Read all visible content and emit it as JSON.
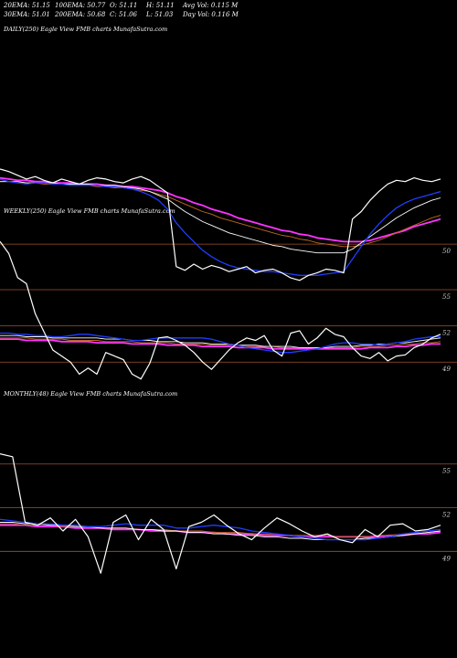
{
  "header": {
    "row1": [
      {
        "label": "20EMA: 51.15"
      },
      {
        "label": "100EMA: 50.77"
      },
      {
        "label": "O: 51.11"
      },
      {
        "label": "H: 51.11"
      },
      {
        "label": "Avg Vol: 0.115 M"
      }
    ],
    "row2": [
      {
        "label": "30EMA: 51.01"
      },
      {
        "label": "200EMA: 50.68"
      },
      {
        "label": "C: 51.06"
      },
      {
        "label": "L: 51.03"
      },
      {
        "label": "Day Vol: 0.116  M"
      }
    ]
  },
  "colors": {
    "price": "#ffffff",
    "ema_fast": "#1f3dff",
    "ema_mid": "#ff33ff",
    "ema_slow": "#ffffff",
    "ema_brown": "#c06a20",
    "level_line": "#a0522d",
    "background": "#000000"
  },
  "chart_data": [
    {
      "type": "line",
      "title": "DAILY(250) Eagle  View  FMB charts MunafaSutra.com",
      "levels": [
        {
          "label": "50",
          "value": 50
        }
      ],
      "series": [
        {
          "values": [
            56,
            55.8,
            55.5,
            55.2,
            55.4,
            55.1,
            54.9,
            55.2,
            55.0,
            54.8,
            55.1,
            55.3,
            55.2,
            55.0,
            54.9,
            55.2,
            55.4,
            55.1,
            54.6,
            54.1,
            48.2,
            47.9,
            48.4,
            48.0,
            48.3,
            48.1,
            47.8,
            48.0,
            48.2,
            47.7,
            47.9,
            48.0,
            47.7,
            47.3,
            47.1,
            47.5,
            47.7,
            48.0,
            47.9,
            47.7,
            52.0,
            52.6,
            53.5,
            54.2,
            54.8,
            55.1,
            55.0,
            55.3,
            55.1,
            55.0,
            55.2
          ]
        },
        {
          "values": [
            55.2,
            55.0,
            54.9,
            54.8,
            54.9,
            54.9,
            54.8,
            54.8,
            54.7,
            54.7,
            54.7,
            54.7,
            54.6,
            54.6,
            54.5,
            54.4,
            54.2,
            53.9,
            53.5,
            52.8,
            51.7,
            50.9,
            50.2,
            49.5,
            49.0,
            48.6,
            48.3,
            48.1,
            48.0,
            47.9,
            47.8,
            47.8,
            47.7,
            47.6,
            47.5,
            47.5,
            47.5,
            47.6,
            47.7,
            47.8,
            48.8,
            49.8,
            50.8,
            51.6,
            52.3,
            52.9,
            53.3,
            53.6,
            53.8,
            54.0,
            54.2
          ]
        },
        {
          "values": [
            55.0,
            55.0,
            55.0,
            54.9,
            54.9,
            54.9,
            54.9,
            54.8,
            54.8,
            54.8,
            54.8,
            54.7,
            54.7,
            54.7,
            54.6,
            54.5,
            54.4,
            54.2,
            53.9,
            53.6,
            53.1,
            52.6,
            52.2,
            51.8,
            51.5,
            51.2,
            50.9,
            50.7,
            50.5,
            50.3,
            50.1,
            49.9,
            49.8,
            49.6,
            49.5,
            49.4,
            49.3,
            49.3,
            49.3,
            49.3,
            49.6,
            50.1,
            50.6,
            51.1,
            51.6,
            52.1,
            52.5,
            52.9,
            53.2,
            53.5,
            53.7
          ]
        },
        {
          "values": [
            55.0,
            55.0,
            54.9,
            54.9,
            54.9,
            54.8,
            54.8,
            54.8,
            54.7,
            54.7,
            54.7,
            54.6,
            54.6,
            54.5,
            54.5,
            54.4,
            54.3,
            54.2,
            54.0,
            53.8,
            53.5,
            53.2,
            52.9,
            52.6,
            52.4,
            52.1,
            51.9,
            51.7,
            51.5,
            51.3,
            51.1,
            50.9,
            50.7,
            50.6,
            50.4,
            50.3,
            50.1,
            50.0,
            49.9,
            49.8,
            49.8,
            49.9,
            50.1,
            50.3,
            50.6,
            50.9,
            51.2,
            51.5,
            51.8,
            52.1,
            52.3
          ]
        },
        {
          "values": [
            55.3,
            55.2,
            55.1,
            55.1,
            55.0,
            55.0,
            54.9,
            54.9,
            54.9,
            54.8,
            54.8,
            54.8,
            54.7,
            54.7,
            54.6,
            54.6,
            54.5,
            54.4,
            54.3,
            54.1,
            53.8,
            53.6,
            53.3,
            53.1,
            52.8,
            52.6,
            52.4,
            52.1,
            51.9,
            51.7,
            51.5,
            51.3,
            51.1,
            51.0,
            50.8,
            50.7,
            50.5,
            50.4,
            50.3,
            50.2,
            50.2,
            50.2,
            50.3,
            50.5,
            50.7,
            50.9,
            51.1,
            51.4,
            51.6,
            51.8,
            52.0
          ]
        }
      ]
    },
    {
      "type": "line",
      "title": "WEEKLY(250) Eagle  View  FMB charts MunafaSutra.com",
      "levels": [
        {
          "label": "55",
          "value": 55
        },
        {
          "label": "52",
          "value": 52
        },
        {
          "label": "49",
          "value": 49
        }
      ],
      "series": [
        {
          "values": [
            59.0,
            58.0,
            56.0,
            55.5,
            53.0,
            51.5,
            50.0,
            49.5,
            49.0,
            48.0,
            48.5,
            48.0,
            49.8,
            49.5,
            49.2,
            48.0,
            47.6,
            48.9,
            51.0,
            51.1,
            50.8,
            50.4,
            49.8,
            49.0,
            48.4,
            49.2,
            50.0,
            50.6,
            51.0,
            50.8,
            51.2,
            50.0,
            49.5,
            51.4,
            51.6,
            50.5,
            51.0,
            51.8,
            51.3,
            51.1,
            50.2,
            49.5,
            49.3,
            49.8,
            49.1,
            49.5,
            49.6,
            50.2,
            50.5,
            51.0,
            51.3
          ]
        },
        {
          "values": [
            51.4,
            51.4,
            51.3,
            51.3,
            51.2,
            51.2,
            51.1,
            51.1,
            51.2,
            51.3,
            51.3,
            51.2,
            51.1,
            51.0,
            50.9,
            50.8,
            50.8,
            50.9,
            51.0,
            51.0,
            51.0,
            51.0,
            51.0,
            51.0,
            50.9,
            50.7,
            50.5,
            50.4,
            50.2,
            50.1,
            50.0,
            49.9,
            49.8,
            49.8,
            49.9,
            50.0,
            50.1,
            50.3,
            50.5,
            50.6,
            50.6,
            50.5,
            50.5,
            50.4,
            50.5,
            50.6,
            50.7,
            50.9,
            51.0,
            51.1,
            51.1
          ]
        },
        {
          "values": [
            51.2,
            51.2,
            51.2,
            51.1,
            51.1,
            51.1,
            51.0,
            51.0,
            51.0,
            51.0,
            51.0,
            51.0,
            50.9,
            50.9,
            50.9,
            50.8,
            50.8,
            50.8,
            50.7,
            50.7,
            50.7,
            50.6,
            50.6,
            50.6,
            50.5,
            50.5,
            50.5,
            50.4,
            50.4,
            50.4,
            50.3,
            50.3,
            50.3,
            50.3,
            50.2,
            50.2,
            50.2,
            50.2,
            50.3,
            50.3,
            50.3,
            50.4,
            50.4,
            50.5,
            50.5,
            50.6,
            50.6,
            50.7,
            50.8,
            50.9,
            51.0
          ]
        },
        {
          "values": [
            51.0,
            51.0,
            51.0,
            51.0,
            50.9,
            50.9,
            50.9,
            50.9,
            50.8,
            50.8,
            50.8,
            50.8,
            50.7,
            50.7,
            50.7,
            50.7,
            50.6,
            50.6,
            50.6,
            50.6,
            50.5,
            50.5,
            50.5,
            50.5,
            50.4,
            50.4,
            50.4,
            50.4,
            50.3,
            50.3,
            50.3,
            50.3,
            50.2,
            50.2,
            50.2,
            50.2,
            50.2,
            50.2,
            50.2,
            50.2,
            50.2,
            50.3,
            50.3,
            50.3,
            50.4,
            50.4,
            50.5,
            50.5,
            50.6,
            50.6,
            50.7
          ]
        },
        {
          "values": [
            50.9,
            50.9,
            50.9,
            50.8,
            50.8,
            50.8,
            50.8,
            50.7,
            50.7,
            50.7,
            50.7,
            50.6,
            50.6,
            50.6,
            50.6,
            50.5,
            50.5,
            50.5,
            50.5,
            50.4,
            50.4,
            50.4,
            50.4,
            50.3,
            50.3,
            50.3,
            50.3,
            50.2,
            50.2,
            50.2,
            50.2,
            50.1,
            50.1,
            50.1,
            50.1,
            50.1,
            50.1,
            50.1,
            50.1,
            50.1,
            50.1,
            50.1,
            50.2,
            50.2,
            50.2,
            50.3,
            50.3,
            50.4,
            50.4,
            50.5,
            50.5
          ]
        }
      ]
    },
    {
      "type": "line",
      "title": "MONTHLY(48) Eagle  View  FMB charts MunafaSutra.com",
      "levels": [
        {
          "label": "55",
          "value": 55
        },
        {
          "label": "52",
          "value": 52
        },
        {
          "label": "49",
          "value": 49
        }
      ],
      "series": [
        {
          "values": [
            55.7,
            55.5,
            51.0,
            50.8,
            51.3,
            50.4,
            51.2,
            50.0,
            47.5,
            51.0,
            51.5,
            49.8,
            51.2,
            50.5,
            47.8,
            50.7,
            51.0,
            51.5,
            50.8,
            50.2,
            49.8,
            50.6,
            51.3,
            50.9,
            50.4,
            50.0,
            50.2,
            49.8,
            49.6,
            50.5,
            50.0,
            50.8,
            50.9,
            50.4,
            50.5,
            50.8
          ]
        },
        {
          "values": [
            51.2,
            51.1,
            51.0,
            50.9,
            50.9,
            50.8,
            50.8,
            50.7,
            50.7,
            50.8,
            50.9,
            50.8,
            50.8,
            50.8,
            50.6,
            50.6,
            50.7,
            50.8,
            50.7,
            50.6,
            50.4,
            50.3,
            50.2,
            50.1,
            50.0,
            49.9,
            49.8,
            49.8,
            49.8,
            49.8,
            49.9,
            50.0,
            50.2,
            50.3,
            50.4,
            50.5
          ]
        },
        {
          "values": [
            51.0,
            51.0,
            50.9,
            50.9,
            50.8,
            50.8,
            50.7,
            50.7,
            50.6,
            50.6,
            50.6,
            50.5,
            50.5,
            50.4,
            50.4,
            50.3,
            50.3,
            50.2,
            50.2,
            50.1,
            50.1,
            50.0,
            50.0,
            49.9,
            49.9,
            49.8,
            49.8,
            49.8,
            49.8,
            49.9,
            49.9,
            50.0,
            50.1,
            50.2,
            50.3,
            50.4
          ]
        },
        {
          "values": [
            50.9,
            50.9,
            50.8,
            50.8,
            50.8,
            50.7,
            50.7,
            50.7,
            50.6,
            50.6,
            50.6,
            50.5,
            50.5,
            50.5,
            50.4,
            50.4,
            50.4,
            50.3,
            50.3,
            50.3,
            50.2,
            50.2,
            50.2,
            50.1,
            50.1,
            50.1,
            50.1,
            50.0,
            50.0,
            50.0,
            50.1,
            50.1,
            50.2,
            50.2,
            50.3,
            50.4
          ]
        },
        {
          "values": [
            50.8,
            50.8,
            50.8,
            50.7,
            50.7,
            50.7,
            50.6,
            50.6,
            50.6,
            50.5,
            50.5,
            50.5,
            50.4,
            50.4,
            50.4,
            50.3,
            50.3,
            50.3,
            50.2,
            50.2,
            50.2,
            50.1,
            50.1,
            50.1,
            50.0,
            50.0,
            50.0,
            50.0,
            50.0,
            50.0,
            50.0,
            50.1,
            50.1,
            50.2,
            50.2,
            50.3
          ]
        }
      ]
    }
  ]
}
